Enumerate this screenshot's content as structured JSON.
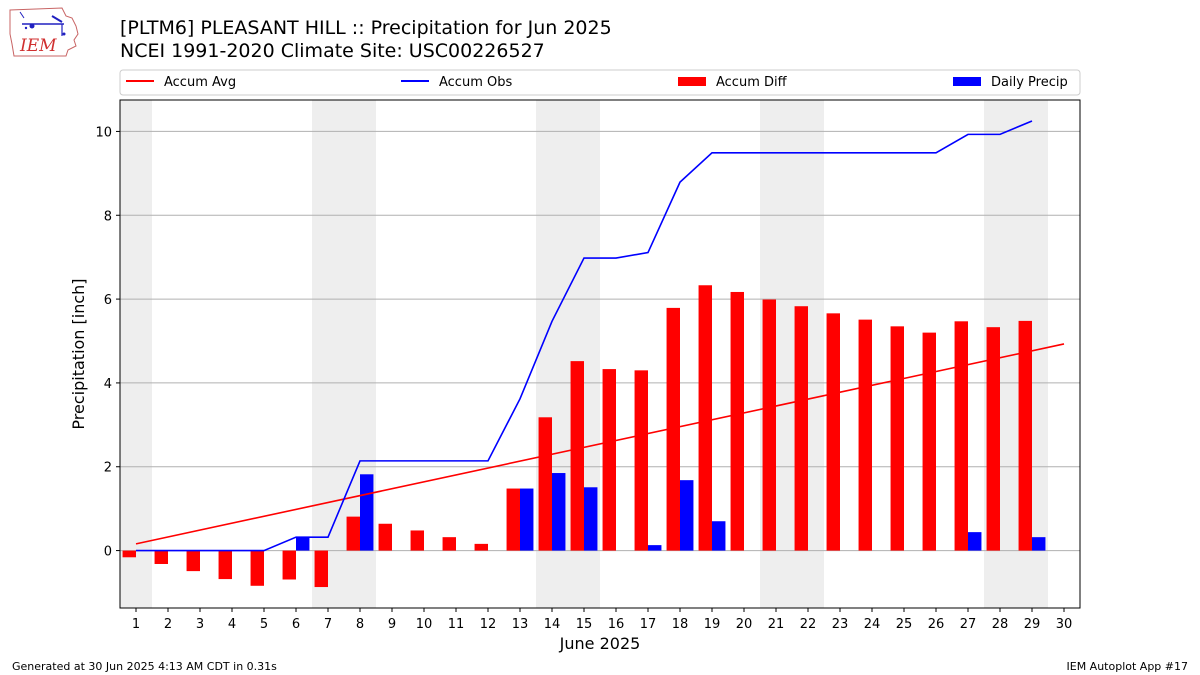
{
  "header": {
    "title": "[PLTM6] PLEASANT HILL :: Precipitation for Jun 2025",
    "subtitle": "NCEI 1991-2020 Climate Site: USC00226527"
  },
  "logo": {
    "icon": "iem-logo-icon",
    "text": "IEM"
  },
  "footer": {
    "left": "Generated at 30 Jun 2025 4:13 AM CDT in 0.31s",
    "right": "IEM Autoplot App #17"
  },
  "chart_data": {
    "type": "bar",
    "title": "[PLTM6] PLEASANT HILL :: Precipitation for Jun 2025",
    "xlabel": "June 2025",
    "ylabel": "Precipitation [inch]",
    "xlim": [
      0.5,
      30.5
    ],
    "ylim": [
      -1.37,
      10.75
    ],
    "xticks": [
      1,
      2,
      3,
      4,
      5,
      6,
      7,
      8,
      9,
      10,
      11,
      12,
      13,
      14,
      15,
      16,
      17,
      18,
      19,
      20,
      21,
      22,
      23,
      24,
      25,
      26,
      27,
      28,
      29,
      30
    ],
    "yticks": [
      0,
      2,
      4,
      6,
      8,
      10
    ],
    "grid": "horizontal",
    "legend_position": "top",
    "weekend_shading": [
      [
        0.5,
        1.5
      ],
      [
        6.5,
        8.5
      ],
      [
        13.5,
        15.5
      ],
      [
        20.5,
        22.5
      ],
      [
        27.5,
        29.5
      ]
    ],
    "colors": {
      "avg": "#ff0000",
      "obs": "#0000ff",
      "diff": "#ff0000",
      "daily": "#0000ff",
      "shade": "#eeeeee",
      "grid": "#b0b0b0"
    },
    "series": [
      {
        "name": "Accum Avg",
        "kind": "line",
        "x": [
          1,
          30
        ],
        "values": [
          0.16,
          4.93
        ]
      },
      {
        "name": "Accum Obs",
        "kind": "line",
        "x": [
          1,
          2,
          3,
          4,
          5,
          6,
          7,
          8,
          9,
          10,
          11,
          12,
          13,
          14,
          15,
          16,
          17,
          18,
          19,
          20,
          21,
          22,
          23,
          24,
          25,
          26,
          27,
          28,
          29
        ],
        "values": [
          0,
          0,
          0,
          0,
          0,
          0.32,
          0.32,
          2.14,
          2.14,
          2.14,
          2.14,
          2.14,
          3.62,
          5.47,
          6.98,
          6.98,
          7.11,
          8.79,
          9.49,
          9.49,
          9.49,
          9.49,
          9.49,
          9.49,
          9.49,
          9.49,
          9.93,
          9.93,
          10.25
        ]
      },
      {
        "name": "Accum Diff",
        "kind": "bar",
        "x": [
          1,
          2,
          3,
          4,
          5,
          6,
          7,
          8,
          9,
          10,
          11,
          12,
          13,
          14,
          15,
          16,
          17,
          18,
          19,
          20,
          21,
          22,
          23,
          24,
          25,
          26,
          27,
          28,
          29
        ],
        "values": [
          -0.16,
          -0.32,
          -0.49,
          -0.68,
          -0.84,
          -0.69,
          -0.87,
          0.81,
          0.64,
          0.48,
          0.32,
          0.16,
          1.48,
          3.18,
          4.52,
          4.33,
          4.3,
          5.79,
          6.33,
          6.17,
          5.99,
          5.83,
          5.66,
          5.51,
          5.35,
          5.2,
          5.47,
          5.33,
          5.48
        ]
      },
      {
        "name": "Daily Precip",
        "kind": "bar",
        "x": [
          6,
          8,
          13,
          14,
          15,
          17,
          18,
          19,
          27,
          29
        ],
        "values": [
          0.32,
          1.82,
          1.48,
          1.85,
          1.51,
          0.13,
          1.68,
          0.7,
          0.44,
          0.32
        ]
      }
    ]
  }
}
